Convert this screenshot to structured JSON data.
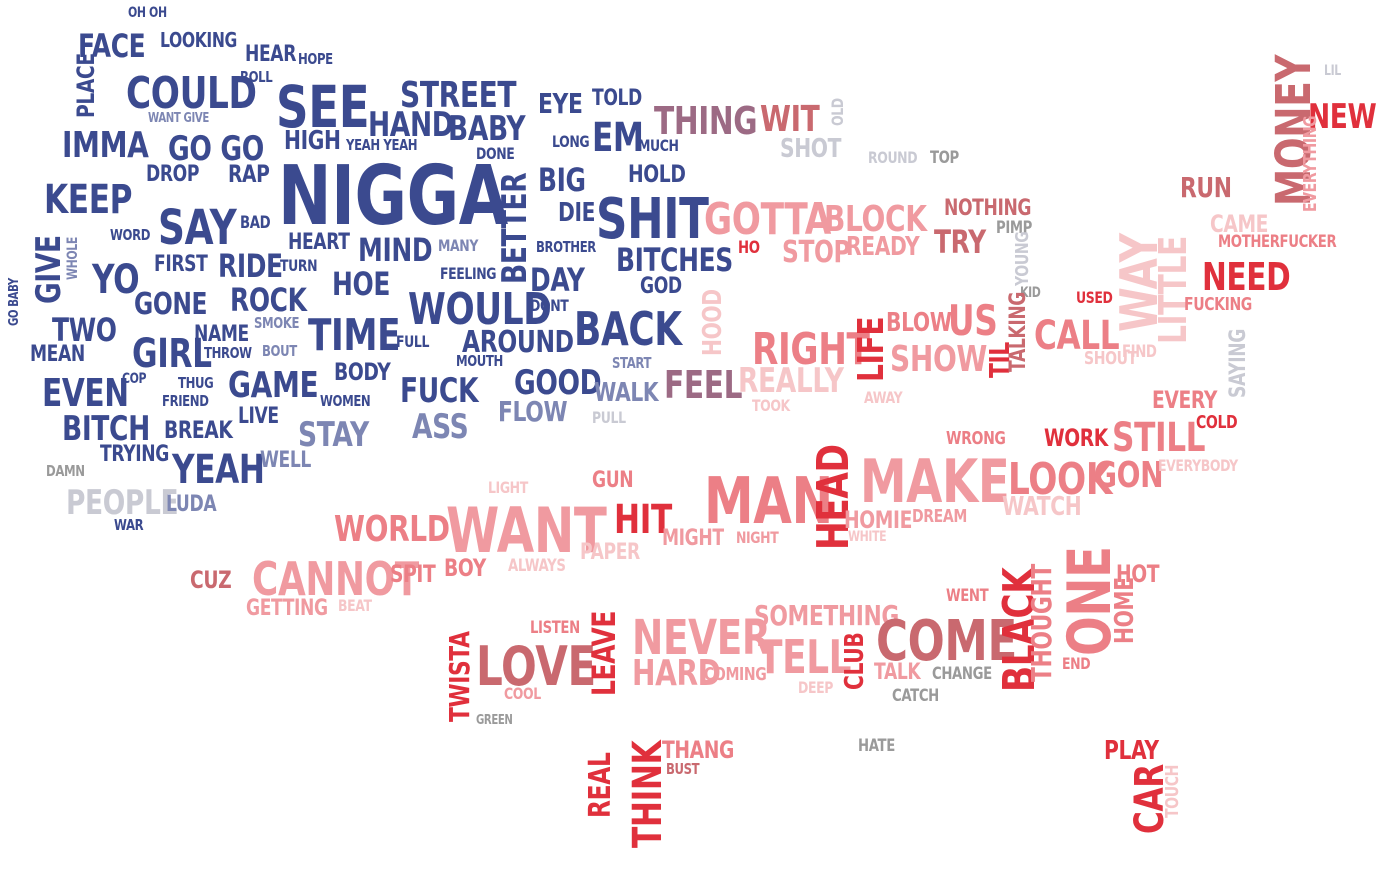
{
  "palette": {
    "navy": "#3b4a8f",
    "navy_light": "#7d86b3",
    "gray_light": "#c9cad3",
    "gray_mid": "#9a9a9a",
    "mauve": "#9c6a84",
    "pink": "#f09aa0",
    "pink_light": "#f6c6c8",
    "salmon": "#ec7f86",
    "red": "#e0303c",
    "rose": "#c9696f"
  },
  "words": [
    {
      "t": "OH OH",
      "c": "navy"
    },
    {
      "t": "FACE",
      "c": "navy"
    },
    {
      "t": "LOOKING",
      "c": "navy"
    },
    {
      "t": "HEAR",
      "c": "navy"
    },
    {
      "t": "HOPE",
      "c": "navy"
    },
    {
      "t": "ROLL",
      "c": "navy"
    },
    {
      "t": "PLACE",
      "c": "navy"
    },
    {
      "t": "COULD",
      "c": "navy"
    },
    {
      "t": "SEE",
      "c": "navy"
    },
    {
      "t": "STREET",
      "c": "navy"
    },
    {
      "t": "EYE",
      "c": "navy"
    },
    {
      "t": "TOLD",
      "c": "navy"
    },
    {
      "t": "WANT GIVE",
      "c": "navy_light"
    },
    {
      "t": "HAND",
      "c": "navy"
    },
    {
      "t": "BABY",
      "c": "navy"
    },
    {
      "t": "IMMA",
      "c": "navy"
    },
    {
      "t": "GO GO",
      "c": "navy"
    },
    {
      "t": "HIGH",
      "c": "navy"
    },
    {
      "t": "YEAH YEAH",
      "c": "navy"
    },
    {
      "t": "DONE",
      "c": "navy"
    },
    {
      "t": "LONG",
      "c": "navy"
    },
    {
      "t": "EM",
      "c": "navy"
    },
    {
      "t": "MUCH",
      "c": "navy"
    },
    {
      "t": "DROP",
      "c": "navy"
    },
    {
      "t": "RAP",
      "c": "navy"
    },
    {
      "t": "NIGGA",
      "c": "navy"
    },
    {
      "t": "BIG",
      "c": "navy"
    },
    {
      "t": "HOLD",
      "c": "navy"
    },
    {
      "t": "KEEP",
      "c": "navy"
    },
    {
      "t": "BETTER",
      "c": "navy"
    },
    {
      "t": "DIE",
      "c": "navy"
    },
    {
      "t": "SHIT",
      "c": "navy"
    },
    {
      "t": "SAY",
      "c": "navy"
    },
    {
      "t": "BAD",
      "c": "navy"
    },
    {
      "t": "WORD",
      "c": "navy"
    },
    {
      "t": "HEART",
      "c": "navy"
    },
    {
      "t": "MIND",
      "c": "navy"
    },
    {
      "t": "MANY",
      "c": "navy_light"
    },
    {
      "t": "BROTHER",
      "c": "navy"
    },
    {
      "t": "BITCHES",
      "c": "navy"
    },
    {
      "t": "GIVE",
      "c": "navy"
    },
    {
      "t": "WHOLE",
      "c": "navy_light"
    },
    {
      "t": "FIRST",
      "c": "navy"
    },
    {
      "t": "RIDE",
      "c": "navy"
    },
    {
      "t": "TURN",
      "c": "navy"
    },
    {
      "t": "YO",
      "c": "navy"
    },
    {
      "t": "HOE",
      "c": "navy"
    },
    {
      "t": "FEELING",
      "c": "navy"
    },
    {
      "t": "DAY",
      "c": "navy"
    },
    {
      "t": "GOD",
      "c": "navy"
    },
    {
      "t": "GO BABY",
      "c": "navy"
    },
    {
      "t": "GONE",
      "c": "navy"
    },
    {
      "t": "ROCK",
      "c": "navy"
    },
    {
      "t": "WOULD",
      "c": "navy"
    },
    {
      "t": "DONT",
      "c": "navy"
    },
    {
      "t": "TWO",
      "c": "navy"
    },
    {
      "t": "SMOKE",
      "c": "navy_light"
    },
    {
      "t": "TIME",
      "c": "navy"
    },
    {
      "t": "BACK",
      "c": "navy"
    },
    {
      "t": "GIRL",
      "c": "navy"
    },
    {
      "t": "NAME",
      "c": "navy"
    },
    {
      "t": "BOUT",
      "c": "navy_light"
    },
    {
      "t": "FULL",
      "c": "navy"
    },
    {
      "t": "AROUND",
      "c": "navy"
    },
    {
      "t": "MEAN",
      "c": "navy"
    },
    {
      "t": "THROW",
      "c": "navy"
    },
    {
      "t": "MOUTH",
      "c": "navy"
    },
    {
      "t": "START",
      "c": "navy_light"
    },
    {
      "t": "COP",
      "c": "navy"
    },
    {
      "t": "BODY",
      "c": "navy"
    },
    {
      "t": "EVEN",
      "c": "navy"
    },
    {
      "t": "THUG",
      "c": "navy"
    },
    {
      "t": "GAME",
      "c": "navy"
    },
    {
      "t": "GOOD",
      "c": "navy"
    },
    {
      "t": "FRIEND",
      "c": "navy"
    },
    {
      "t": "FUCK",
      "c": "navy"
    },
    {
      "t": "WALK",
      "c": "navy_light"
    },
    {
      "t": "WOMEN",
      "c": "navy"
    },
    {
      "t": "LIVE",
      "c": "navy"
    },
    {
      "t": "FLOW",
      "c": "navy_light"
    },
    {
      "t": "BITCH",
      "c": "navy"
    },
    {
      "t": "BREAK",
      "c": "navy"
    },
    {
      "t": "PULL",
      "c": "gray_light"
    },
    {
      "t": "STAY",
      "c": "navy_light"
    },
    {
      "t": "ASS",
      "c": "navy_light"
    },
    {
      "t": "TRYING",
      "c": "navy"
    },
    {
      "t": "DAMN",
      "c": "gray_mid"
    },
    {
      "t": "YEAH",
      "c": "navy"
    },
    {
      "t": "WELL",
      "c": "navy_light"
    },
    {
      "t": "PEOPLE",
      "c": "gray_light"
    },
    {
      "t": "LUDA",
      "c": "navy_light"
    },
    {
      "t": "WAR",
      "c": "navy"
    },
    {
      "t": "THING",
      "c": "mauve"
    },
    {
      "t": "WIT",
      "c": "rose"
    },
    {
      "t": "OLD",
      "c": "gray_light"
    },
    {
      "t": "SHOT",
      "c": "gray_light"
    },
    {
      "t": "ROUND",
      "c": "gray_light"
    },
    {
      "t": "TOP",
      "c": "gray_mid"
    },
    {
      "t": "LIL",
      "c": "gray_light"
    },
    {
      "t": "NEW",
      "c": "red"
    },
    {
      "t": "RUN",
      "c": "rose"
    },
    {
      "t": "MONEY",
      "c": "rose"
    },
    {
      "t": "EVERYTHING",
      "c": "pink"
    },
    {
      "t": "GOTTA",
      "c": "pink"
    },
    {
      "t": "BLOCK",
      "c": "pink"
    },
    {
      "t": "NOTHING",
      "c": "rose"
    },
    {
      "t": "TRY",
      "c": "rose"
    },
    {
      "t": "PIMP",
      "c": "gray_mid"
    },
    {
      "t": "CAME",
      "c": "pink_light"
    },
    {
      "t": "MOTHERFUCKER",
      "c": "salmon"
    },
    {
      "t": "HO",
      "c": "red"
    },
    {
      "t": "STOP",
      "c": "pink"
    },
    {
      "t": "READY",
      "c": "pink"
    },
    {
      "t": "YOUNG",
      "c": "gray_light"
    },
    {
      "t": "KID",
      "c": "gray_mid"
    },
    {
      "t": "WAY",
      "c": "pink_light"
    },
    {
      "t": "LITTLE",
      "c": "pink_light"
    },
    {
      "t": "NEED",
      "c": "red"
    },
    {
      "t": "USED",
      "c": "red"
    },
    {
      "t": "FUCKING",
      "c": "salmon"
    },
    {
      "t": "HOOD",
      "c": "pink_light"
    },
    {
      "t": "RIGHT",
      "c": "salmon"
    },
    {
      "t": "LIFE",
      "c": "red"
    },
    {
      "t": "BLOW",
      "c": "salmon"
    },
    {
      "t": "US",
      "c": "salmon"
    },
    {
      "t": "SHOW",
      "c": "pink"
    },
    {
      "t": "TIL",
      "c": "red"
    },
    {
      "t": "TALKING",
      "c": "rose"
    },
    {
      "t": "CALL",
      "c": "salmon"
    },
    {
      "t": "SHOUT",
      "c": "pink_light"
    },
    {
      "t": "FIND",
      "c": "pink_light"
    },
    {
      "t": "SAYING",
      "c": "gray_light"
    },
    {
      "t": "FEEL",
      "c": "mauve"
    },
    {
      "t": "REALLY",
      "c": "pink_light"
    },
    {
      "t": "TOOK",
      "c": "pink_light"
    },
    {
      "t": "AWAY",
      "c": "pink_light"
    },
    {
      "t": "EVERY",
      "c": "salmon"
    },
    {
      "t": "COLD",
      "c": "red"
    },
    {
      "t": "STILL",
      "c": "salmon"
    },
    {
      "t": "WRONG",
      "c": "salmon"
    },
    {
      "t": "WORK",
      "c": "red"
    },
    {
      "t": "MAKE",
      "c": "pink"
    },
    {
      "t": "LOOK",
      "c": "salmon"
    },
    {
      "t": "GON",
      "c": "salmon"
    },
    {
      "t": "EVERYBODY",
      "c": "pink_light"
    },
    {
      "t": "LIGHT",
      "c": "pink_light"
    },
    {
      "t": "GUN",
      "c": "salmon"
    },
    {
      "t": "MAN",
      "c": "salmon"
    },
    {
      "t": "HEAD",
      "c": "red"
    },
    {
      "t": "WATCH",
      "c": "pink_light"
    },
    {
      "t": "WORLD",
      "c": "salmon"
    },
    {
      "t": "WANT",
      "c": "pink"
    },
    {
      "t": "HIT",
      "c": "red"
    },
    {
      "t": "MIGHT",
      "c": "pink"
    },
    {
      "t": "NIGHT",
      "c": "pink"
    },
    {
      "t": "HOMIE",
      "c": "pink"
    },
    {
      "t": "DREAM",
      "c": "pink"
    },
    {
      "t": "WHITE",
      "c": "pink_light"
    },
    {
      "t": "PAPER",
      "c": "pink_light"
    },
    {
      "t": "CUZ",
      "c": "rose"
    },
    {
      "t": "CANNOT",
      "c": "pink"
    },
    {
      "t": "SPIT",
      "c": "salmon"
    },
    {
      "t": "BOY",
      "c": "salmon"
    },
    {
      "t": "ALWAYS",
      "c": "pink_light"
    },
    {
      "t": "GETTING",
      "c": "pink"
    },
    {
      "t": "BEAT",
      "c": "pink_light"
    },
    {
      "t": "HOT",
      "c": "salmon"
    },
    {
      "t": "WENT",
      "c": "salmon"
    },
    {
      "t": "SOMETHING",
      "c": "pink"
    },
    {
      "t": "ONE",
      "c": "salmon"
    },
    {
      "t": "HOME",
      "c": "salmon"
    },
    {
      "t": "LISTEN",
      "c": "salmon"
    },
    {
      "t": "NEVER",
      "c": "pink"
    },
    {
      "t": "COME",
      "c": "rose"
    },
    {
      "t": "BLACK",
      "c": "red"
    },
    {
      "t": "THOUGHT",
      "c": "salmon"
    },
    {
      "t": "TWISTA",
      "c": "red"
    },
    {
      "t": "LOVE",
      "c": "rose"
    },
    {
      "t": "LEAVE",
      "c": "red"
    },
    {
      "t": "HARD",
      "c": "pink"
    },
    {
      "t": "COMING",
      "c": "pink"
    },
    {
      "t": "TELL",
      "c": "pink"
    },
    {
      "t": "CLUB",
      "c": "red"
    },
    {
      "t": "TALK",
      "c": "pink"
    },
    {
      "t": "CHANGE",
      "c": "gray_mid"
    },
    {
      "t": "END",
      "c": "salmon"
    },
    {
      "t": "COOL",
      "c": "pink"
    },
    {
      "t": "DEEP",
      "c": "pink_light"
    },
    {
      "t": "CATCH",
      "c": "gray_mid"
    },
    {
      "t": "GREEN",
      "c": "gray_mid"
    },
    {
      "t": "THANG",
      "c": "salmon"
    },
    {
      "t": "HATE",
      "c": "gray_mid"
    },
    {
      "t": "PLAY",
      "c": "red"
    },
    {
      "t": "BUST",
      "c": "rose"
    },
    {
      "t": "REAL",
      "c": "red"
    },
    {
      "t": "THINK",
      "c": "red"
    },
    {
      "t": "CAR",
      "c": "red"
    },
    {
      "t": "TOUCH",
      "c": "pink_light"
    }
  ]
}
